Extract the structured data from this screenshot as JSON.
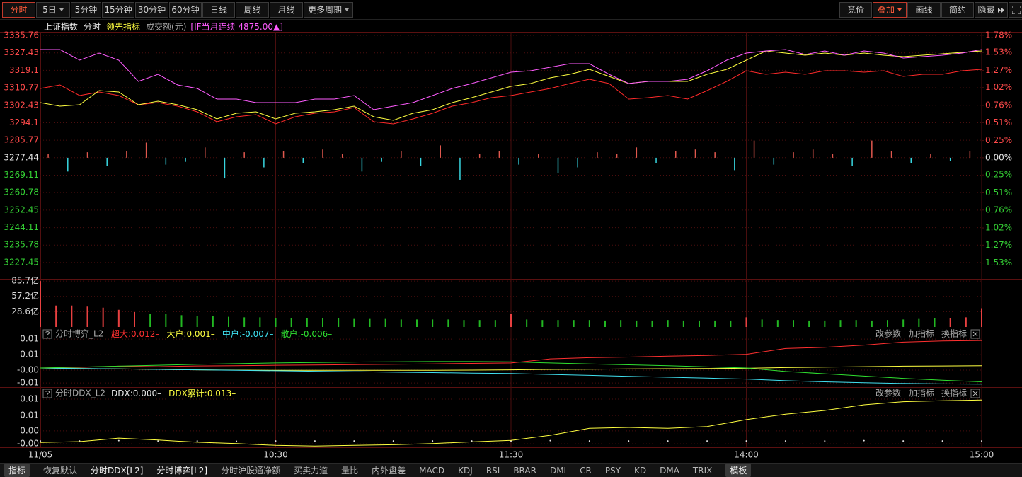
{
  "toolbar": {
    "left": [
      "分时",
      "5日",
      "5分钟",
      "15分钟",
      "30分钟",
      "60分钟",
      "日线",
      "周线",
      "月线",
      "更多周期"
    ],
    "right": [
      "竞价",
      "叠加",
      "画线",
      "简约",
      "隐藏"
    ]
  },
  "chart_data": [
    {
      "type": "line",
      "period": "分时",
      "volume_label": "成交额(元)",
      "xlim": [
        0,
        240
      ],
      "x": [
        0,
        5,
        10,
        15,
        20,
        25,
        30,
        35,
        40,
        45,
        50,
        55,
        60,
        65,
        70,
        75,
        80,
        85,
        90,
        95,
        100,
        105,
        110,
        115,
        120,
        125,
        130,
        135,
        140,
        145,
        150,
        155,
        160,
        165,
        170,
        175,
        180,
        185,
        190,
        195,
        200,
        205,
        210,
        215,
        220,
        225,
        230,
        235,
        240
      ],
      "ylim": [
        3220.0,
        3337.45
      ],
      "yticks": [
        3335.76,
        3327.43,
        3319.1,
        3310.77,
        3302.43,
        3294.1,
        3285.77,
        3277.44,
        3269.11,
        3260.78,
        3252.45,
        3244.11,
        3235.78,
        3227.45
      ],
      "y2lim": [
        -1.75,
        1.83
      ],
      "y2ticks": [
        {
          "value": 1.78,
          "label": "1.78%"
        },
        {
          "value": 1.53,
          "label": "1.53%"
        },
        {
          "value": 1.27,
          "label": "1.27%"
        },
        {
          "value": 1.02,
          "label": "1.02%"
        },
        {
          "value": 0.76,
          "label": "0.76%"
        },
        {
          "value": 0.51,
          "label": "0.51%"
        },
        {
          "value": 0.25,
          "label": "0.25%"
        },
        {
          "value": 0,
          "label": "0.00%"
        },
        {
          "value": -0.25,
          "label": "0.25%"
        },
        {
          "value": -0.51,
          "label": "0.51%"
        },
        {
          "value": -0.76,
          "label": "0.76%"
        },
        {
          "value": -1.02,
          "label": "1.02%"
        },
        {
          "value": -1.27,
          "label": "1.27%"
        },
        {
          "value": -1.53,
          "label": "1.53%"
        }
      ],
      "axis_colors": {
        "up": "#ff4a4a",
        "down": "#34d034",
        "flat": "#e6e6e6"
      },
      "grid": true,
      "grid_color": "#4a0e0e",
      "series": [
        {
          "name": "上证指数",
          "color": "#ff2a2a",
          "values": [
            3310.45,
            3312.14,
            3307.08,
            3308.76,
            3307.08,
            3302.69,
            3303.7,
            3302.01,
            3299.31,
            3294.59,
            3296.95,
            3297.96,
            3293.58,
            3296.95,
            3298.64,
            3299.31,
            3301.34,
            3294.59,
            3293.58,
            3295.94,
            3298.64,
            3302.01,
            3303.7,
            3306.06,
            3307.08,
            3308.76,
            3310.45,
            3312.81,
            3314.84,
            3312.81,
            3305.39,
            3306.06,
            3307.08,
            3305.39,
            3309.44,
            3313.83,
            3318.89,
            3317.2,
            3318.21,
            3317.2,
            3318.89,
            3318.89,
            3318.21,
            3318.89,
            3316.19,
            3317.2,
            3317.2,
            3318.89,
            3319.56
          ]
        },
        {
          "name": "领先指标",
          "color": "#ffff40",
          "values": [
            3303.7,
            3302.01,
            3302.69,
            3309.44,
            3308.76,
            3302.69,
            3304.38,
            3302.69,
            3300.33,
            3295.94,
            3298.64,
            3299.31,
            3295.94,
            3298.64,
            3299.31,
            3300.33,
            3302.01,
            3296.95,
            3295.26,
            3298.64,
            3300.33,
            3303.7,
            3306.06,
            3308.76,
            3311.46,
            3312.81,
            3315.51,
            3317.2,
            3319.56,
            3316.19,
            3312.81,
            3313.83,
            3313.83,
            3313.83,
            3317.2,
            3319.56,
            3323.95,
            3328.34,
            3327.33,
            3326.31,
            3327.33,
            3326.31,
            3327.33,
            3326.31,
            3325.64,
            3326.31,
            3326.99,
            3327.66,
            3328.34
          ]
        },
        {
          "name": "[IF当月连续 4875.00▲]",
          "color": "#ff5cff",
          "values": [
            3329.01,
            3329.01,
            3323.95,
            3327.33,
            3323.95,
            3313.83,
            3317.2,
            3312.14,
            3310.45,
            3305.39,
            3305.39,
            3303.7,
            3303.7,
            3303.7,
            3305.39,
            3305.39,
            3307.08,
            3300.33,
            3302.01,
            3303.7,
            3307.08,
            3310.45,
            3312.81,
            3315.51,
            3318.21,
            3318.89,
            3320.58,
            3322.26,
            3322.26,
            3317.2,
            3312.81,
            3313.83,
            3313.83,
            3314.84,
            3318.89,
            3323.95,
            3327.33,
            3328.34,
            3329.01,
            3326.65,
            3328.34,
            3326.31,
            3328.34,
            3327.33,
            3324.96,
            3325.64,
            3326.31,
            3327.33,
            3329.01
          ]
        }
      ],
      "bars": {
        "axis": "y2",
        "up_color": "#e0584e",
        "down_color": "#38d6e0",
        "x": [
          2,
          7,
          12,
          17,
          22,
          27,
          32,
          37,
          42,
          47,
          52,
          57,
          62,
          67,
          72,
          77,
          82,
          87,
          92,
          97,
          102,
          107,
          112,
          117,
          122,
          127,
          132,
          137,
          142,
          147,
          152,
          157,
          162,
          167,
          172,
          177,
          182,
          187,
          192,
          197,
          202,
          207,
          212,
          217,
          222,
          227,
          232,
          237
        ],
        "values": [
          0.06,
          -0.2,
          0.08,
          -0.12,
          0.1,
          0.22,
          -0.1,
          -0.06,
          0.15,
          -0.3,
          0.08,
          -0.14,
          0.1,
          -0.08,
          0.12,
          0.06,
          -0.2,
          -0.06,
          0.1,
          -0.12,
          0.18,
          -0.32,
          0.06,
          0.1,
          -0.1,
          0.05,
          -0.22,
          -0.14,
          0.08,
          0.06,
          0.15,
          -0.08,
          0.1,
          0.12,
          0.08,
          -0.18,
          0.25,
          -0.1,
          0.08,
          0.12,
          0.06,
          -0.12,
          0.25,
          0.1,
          -0.08,
          0.06,
          -0.05,
          0.1
        ]
      }
    },
    {
      "type": "bar",
      "xlim": [
        0,
        240
      ],
      "ylim": [
        0,
        88.5
      ],
      "yticks": [
        {
          "value": 85.7,
          "label": "85.7亿"
        },
        {
          "value": 57.2,
          "label": "57.2亿"
        },
        {
          "value": 28.6,
          "label": "28.6亿"
        }
      ],
      "grid": true,
      "grid_color": "#4a0e0e",
      "x": [
        0,
        4,
        8,
        12,
        16,
        20,
        24,
        28,
        32,
        36,
        40,
        44,
        48,
        52,
        56,
        60,
        64,
        68,
        72,
        76,
        80,
        84,
        88,
        92,
        96,
        100,
        104,
        108,
        112,
        116,
        120,
        124,
        128,
        132,
        136,
        140,
        144,
        148,
        152,
        156,
        160,
        164,
        168,
        172,
        176,
        180,
        184,
        188,
        192,
        196,
        200,
        204,
        208,
        212,
        216,
        220,
        224,
        228,
        232,
        236,
        240
      ],
      "values": [
        85.7,
        40,
        40,
        38,
        36,
        32,
        28,
        25,
        24,
        22,
        21,
        20,
        19,
        18,
        18,
        17,
        17,
        16,
        16,
        16,
        15,
        15,
        15,
        14,
        14,
        14,
        14,
        13,
        13,
        13,
        25,
        14,
        13,
        13,
        13,
        13,
        12,
        13,
        12,
        12,
        13,
        12,
        12,
        12,
        12,
        18,
        14,
        13,
        13,
        12,
        12,
        13,
        13,
        12,
        13,
        14,
        15,
        16,
        17,
        18,
        35
      ],
      "colors": [
        "#e84040",
        "#e84040",
        "#e84040",
        "#e84040",
        "#e84040",
        "#e84040",
        "#e84040",
        "#22b822",
        "#22b822",
        "#22b822",
        "#22b822",
        "#22b822",
        "#22b822",
        "#22b822",
        "#22b822",
        "#22b822",
        "#22b822",
        "#22b822",
        "#22b822",
        "#22b822",
        "#22b822",
        "#22b822",
        "#22b822",
        "#22b822",
        "#22b822",
        "#22b822",
        "#22b822",
        "#22b822",
        "#22b822",
        "#22b822",
        "#e84040",
        "#22b822",
        "#22b822",
        "#22b822",
        "#22b822",
        "#22b822",
        "#22b822",
        "#22b822",
        "#22b822",
        "#22b822",
        "#22b822",
        "#22b822",
        "#22b822",
        "#22b822",
        "#22b822",
        "#e84040",
        "#22b822",
        "#22b822",
        "#22b822",
        "#22b822",
        "#22b822",
        "#22b822",
        "#22b822",
        "#22b822",
        "#22b822",
        "#22b822",
        "#22b822",
        "#22b822",
        "#e84040",
        "#e84040",
        "#e84040"
      ]
    },
    {
      "type": "line",
      "title": "分时博弈_L2",
      "buttons": [
        "改参数",
        "加指标",
        "换指标"
      ],
      "xlim": [
        0,
        240
      ],
      "ylim": [
        -0.008,
        0.0148
      ],
      "yticks": [
        {
          "value": 0.0126,
          "label": "0.01"
        },
        {
          "value": 0.0058,
          "label": "0.01"
        },
        {
          "value": -0.0009,
          "label": "-0.00"
        },
        {
          "value": -0.0065,
          "label": "-0.01"
        }
      ],
      "grid": true,
      "grid_color": "#4a0e0e",
      "x": [
        0,
        10,
        20,
        30,
        40,
        50,
        60,
        70,
        80,
        90,
        100,
        110,
        120,
        130,
        140,
        150,
        160,
        170,
        180,
        190,
        200,
        210,
        220,
        230,
        240
      ],
      "series": [
        {
          "name": "超大:0.012–",
          "color": "#ff3030",
          "values": [
            0,
            0.0003,
            0.0008,
            0.0006,
            0.0009,
            0.001,
            0.0012,
            0.0013,
            0.0015,
            0.0016,
            0.0018,
            0.002,
            0.0022,
            0.004,
            0.0045,
            0.0048,
            0.0052,
            0.0055,
            0.006,
            0.0085,
            0.009,
            0.01,
            0.0113,
            0.0118,
            0.012
          ]
        },
        {
          "name": "大户:0.001–",
          "color": "#ffff40",
          "values": [
            0,
            -0.0002,
            -0.0004,
            -0.0006,
            -0.0008,
            -0.0009,
            -0.001,
            -0.001,
            -0.001,
            -0.001,
            -0.001,
            -0.0009,
            -0.0008,
            -0.0006,
            -0.0005,
            -0.0004,
            -0.0003,
            -0.0002,
            -0.0001,
            0.0002,
            0.0004,
            0.0006,
            0.0008,
            0.0009,
            0.001
          ]
        },
        {
          "name": "中户:-0.007–",
          "color": "#40e0f0",
          "values": [
            0,
            -0.0002,
            -0.0004,
            -0.0006,
            -0.0008,
            -0.001,
            -0.0012,
            -0.0014,
            -0.0016,
            -0.0018,
            -0.002,
            -0.0022,
            -0.0024,
            -0.0028,
            -0.0032,
            -0.0036,
            -0.004,
            -0.0044,
            -0.0048,
            -0.0055,
            -0.006,
            -0.0064,
            -0.0067,
            -0.0069,
            -0.007
          ]
        },
        {
          "name": "散户:-0.006–",
          "color": "#30e030",
          "values": [
            0,
            0.0004,
            0.0008,
            0.0012,
            0.0016,
            0.0019,
            0.0022,
            0.0024,
            0.0026,
            0.0027,
            0.0028,
            0.0028,
            0.0027,
            0.0022,
            0.0018,
            0.0014,
            0.001,
            0.0005,
            0,
            -0.0015,
            -0.0025,
            -0.0035,
            -0.0045,
            -0.0053,
            -0.006
          ]
        }
      ]
    },
    {
      "type": "line",
      "title": "分时DDX_L2",
      "buttons": [
        "改参数",
        "加指标",
        "换指标"
      ],
      "xlim": [
        0,
        240
      ],
      "ylim": [
        -0.002,
        0.0169
      ],
      "yticks": [
        {
          "value": 0.0133,
          "label": "0.01"
        },
        {
          "value": 0.0081,
          "label": "0.01"
        },
        {
          "value": 0.0032,
          "label": "0.00"
        },
        {
          "value": -0.0009,
          "label": "-0.00"
        }
      ],
      "xticks": [
        {
          "value": 0,
          "label": "11/05"
        },
        {
          "value": 60,
          "label": "10:30"
        },
        {
          "value": 120,
          "label": "11:30"
        },
        {
          "value": 180,
          "label": "14:00"
        },
        {
          "value": 240,
          "label": "15:00"
        }
      ],
      "grid": true,
      "grid_color": "#4a0e0e",
      "x": [
        0,
        10,
        20,
        30,
        40,
        50,
        60,
        70,
        80,
        90,
        100,
        110,
        120,
        130,
        140,
        150,
        160,
        170,
        180,
        190,
        200,
        210,
        220,
        230,
        240
      ],
      "series": [
        {
          "name": "DDX:0.000–",
          "color": "#e6e6e6",
          "marker": "dot",
          "values": [
            0,
            0,
            0.0001,
            0,
            0,
            -0.0001,
            0,
            0,
            0,
            0,
            0,
            0,
            0,
            0.0001,
            0,
            0,
            0,
            0,
            0,
            0,
            0,
            0.0001,
            0,
            0,
            0
          ]
        },
        {
          "name": "DDX累计:0.013–",
          "color": "#ffff40",
          "values": [
            -0.0005,
            -0.0002,
            0.0009,
            0.0003,
            -0.0004,
            -0.0008,
            -0.0014,
            -0.0016,
            -0.0014,
            -0.0012,
            -0.0008,
            -0.0003,
            0.0002,
            0.0018,
            0.004,
            0.0043,
            0.004,
            0.0046,
            0.0068,
            0.0085,
            0.0097,
            0.0115,
            0.0125,
            0.0128,
            0.013
          ]
        }
      ]
    }
  ],
  "bottom_tabs": [
    "指标",
    "恢复默认",
    "分时DDX[L2]",
    "分时博弈[L2]",
    "分时沪股通净额",
    "买卖力道",
    "量比",
    "内外盘差",
    "MACD",
    "KDJ",
    "RSI",
    "BRAR",
    "DMI",
    "CR",
    "PSY",
    "KD",
    "DMA",
    "TRIX",
    "模板"
  ]
}
